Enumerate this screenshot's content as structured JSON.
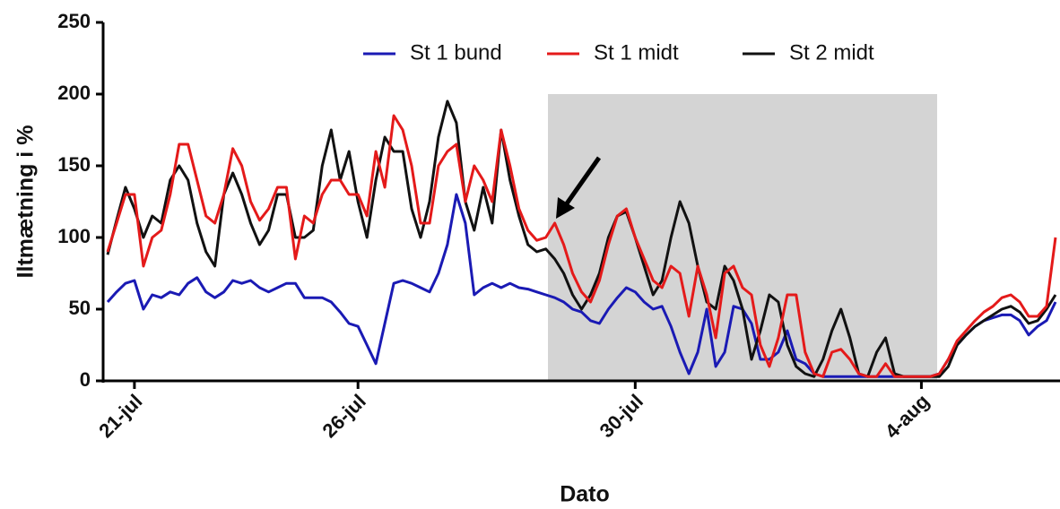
{
  "chart_data": {
    "type": "line",
    "x_label": "Dato",
    "y_label": "Iltmætning i %",
    "categories": [
      null,
      null,
      null,
      "21-jul",
      null,
      null,
      null,
      null,
      null,
      null,
      null,
      null,
      null,
      null,
      null,
      null,
      null,
      null,
      null,
      null,
      null,
      null,
      null,
      null,
      null,
      null,
      null,
      null,
      "26-jul",
      null,
      null,
      null,
      null,
      null,
      null,
      null,
      null,
      null,
      null,
      null,
      null,
      null,
      null,
      null,
      null,
      null,
      null,
      null,
      null,
      null,
      null,
      null,
      null,
      null,
      null,
      null,
      null,
      null,
      null,
      "30-jul",
      null,
      null,
      null,
      null,
      null,
      null,
      null,
      null,
      null,
      null,
      null,
      null,
      null,
      null,
      null,
      null,
      null,
      null,
      null,
      null,
      null,
      null,
      null,
      null,
      null,
      null,
      null,
      null,
      null,
      null,
      null,
      "4-aug",
      null,
      null,
      null,
      null,
      null,
      null,
      null,
      null,
      null,
      null,
      null,
      null,
      null,
      null,
      null
    ],
    "series": [
      {
        "name": "St 1 bund",
        "color": "#1a1ab4",
        "values": [
          55,
          62,
          68,
          70,
          50,
          60,
          58,
          62,
          60,
          68,
          72,
          62,
          58,
          62,
          70,
          68,
          70,
          65,
          62,
          65,
          68,
          68,
          58,
          58,
          58,
          55,
          48,
          40,
          38,
          25,
          12,
          40,
          68,
          70,
          68,
          65,
          62,
          75,
          95,
          130,
          110,
          60,
          65,
          68,
          65,
          68,
          65,
          64,
          62,
          60,
          58,
          55,
          50,
          48,
          42,
          40,
          50,
          58,
          65,
          62,
          55,
          50,
          52,
          38,
          20,
          5,
          20,
          50,
          10,
          20,
          52,
          50,
          40,
          15,
          15,
          20,
          35,
          15,
          12,
          5,
          3,
          3,
          3,
          3,
          3,
          3,
          3,
          3,
          3,
          3,
          3,
          3,
          3,
          5,
          15,
          25,
          32,
          38,
          42,
          44,
          46,
          46,
          42,
          32,
          38,
          42,
          55
        ]
      },
      {
        "name": "St 1 midt",
        "color": "#e41a1a",
        "values": [
          90,
          110,
          130,
          130,
          80,
          100,
          105,
          130,
          165,
          165,
          140,
          115,
          110,
          130,
          162,
          150,
          125,
          112,
          120,
          135,
          135,
          85,
          115,
          110,
          130,
          140,
          140,
          130,
          130,
          115,
          160,
          135,
          185,
          175,
          150,
          110,
          110,
          150,
          160,
          165,
          125,
          150,
          140,
          125,
          175,
          150,
          120,
          105,
          98,
          100,
          110,
          95,
          75,
          62,
          55,
          70,
          95,
          115,
          120,
          100,
          85,
          70,
          65,
          80,
          75,
          45,
          80,
          60,
          30,
          75,
          80,
          65,
          60,
          25,
          10,
          30,
          60,
          60,
          20,
          5,
          3,
          20,
          22,
          15,
          5,
          3,
          3,
          12,
          3,
          3,
          3,
          3,
          3,
          5,
          15,
          28,
          35,
          42,
          48,
          52,
          58,
          60,
          55,
          45,
          45,
          52,
          100
        ]
      },
      {
        "name": "St 2 midt",
        "color": "#111111",
        "values": [
          88,
          112,
          135,
          120,
          100,
          115,
          110,
          140,
          150,
          140,
          110,
          90,
          80,
          130,
          145,
          130,
          110,
          95,
          105,
          130,
          130,
          100,
          100,
          105,
          150,
          175,
          140,
          160,
          125,
          100,
          140,
          170,
          160,
          160,
          120,
          100,
          125,
          170,
          195,
          180,
          125,
          105,
          135,
          110,
          175,
          140,
          115,
          95,
          90,
          92,
          85,
          75,
          60,
          50,
          60,
          75,
          100,
          115,
          118,
          100,
          80,
          60,
          70,
          100,
          125,
          110,
          80,
          55,
          50,
          80,
          70,
          50,
          15,
          35,
          60,
          55,
          25,
          10,
          5,
          3,
          15,
          35,
          50,
          30,
          5,
          3,
          20,
          30,
          5,
          3,
          3,
          3,
          3,
          3,
          10,
          25,
          32,
          38,
          42,
          46,
          50,
          52,
          48,
          40,
          42,
          50,
          60
        ]
      }
    ],
    "ylim": [
      0,
      250
    ],
    "yticks": [
      0,
      50,
      100,
      150,
      200,
      250
    ],
    "grid": false
  }
}
